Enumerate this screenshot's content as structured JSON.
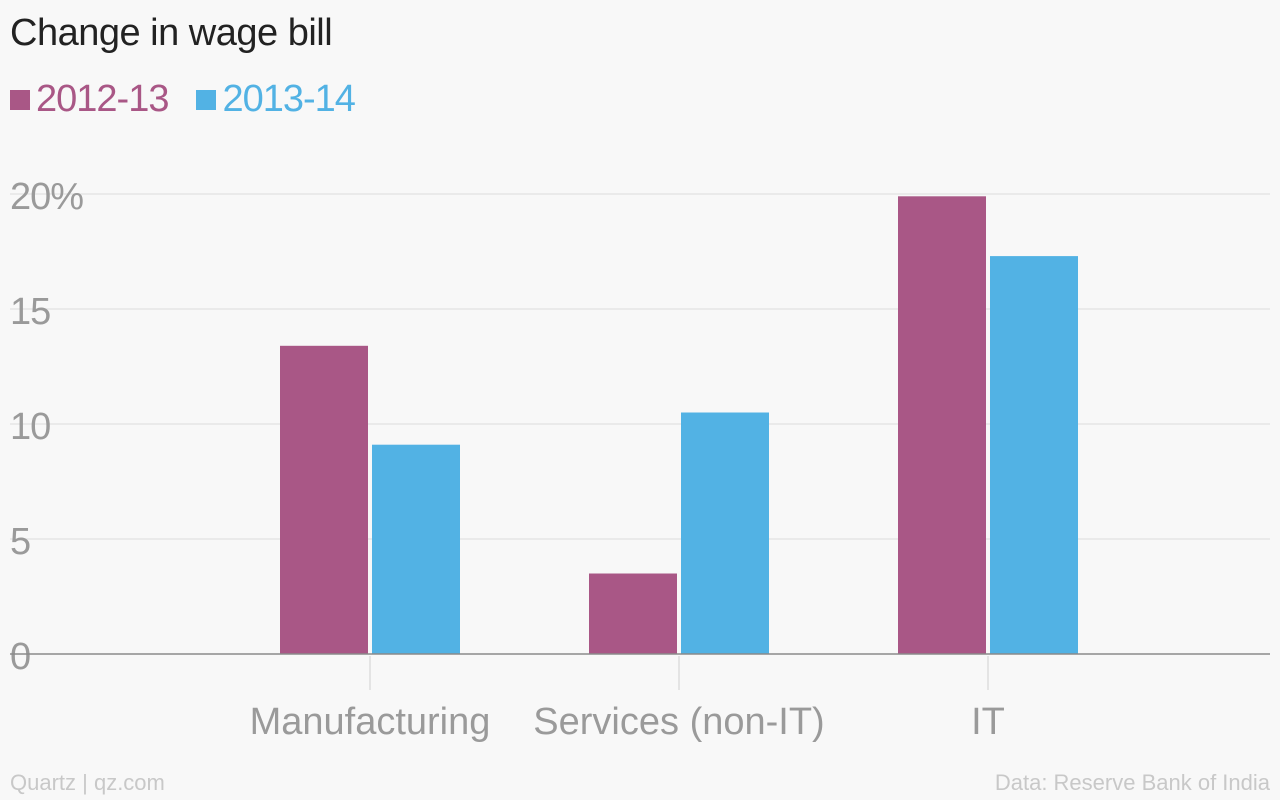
{
  "footer": {
    "source": "Data: Reserve Bank of India",
    "brand": "Quartz | qz.com"
  },
  "chart_data": {
    "type": "bar",
    "title": "Change in wage bill",
    "categories": [
      "Manufacturing",
      "Services (non-IT)",
      "IT"
    ],
    "series": [
      {
        "name": "2012-13",
        "color": "#a95786",
        "values": [
          13.4,
          3.5,
          19.9
        ]
      },
      {
        "name": "2013-14",
        "color": "#52b2e4",
        "values": [
          9.1,
          10.5,
          17.3
        ]
      }
    ],
    "y_ticks": [
      "0",
      "5",
      "10",
      "15",
      "20%"
    ],
    "ylim": [
      0,
      20
    ],
    "grid": true,
    "legend_position": "top-left",
    "xlabel": "",
    "ylabel": ""
  }
}
